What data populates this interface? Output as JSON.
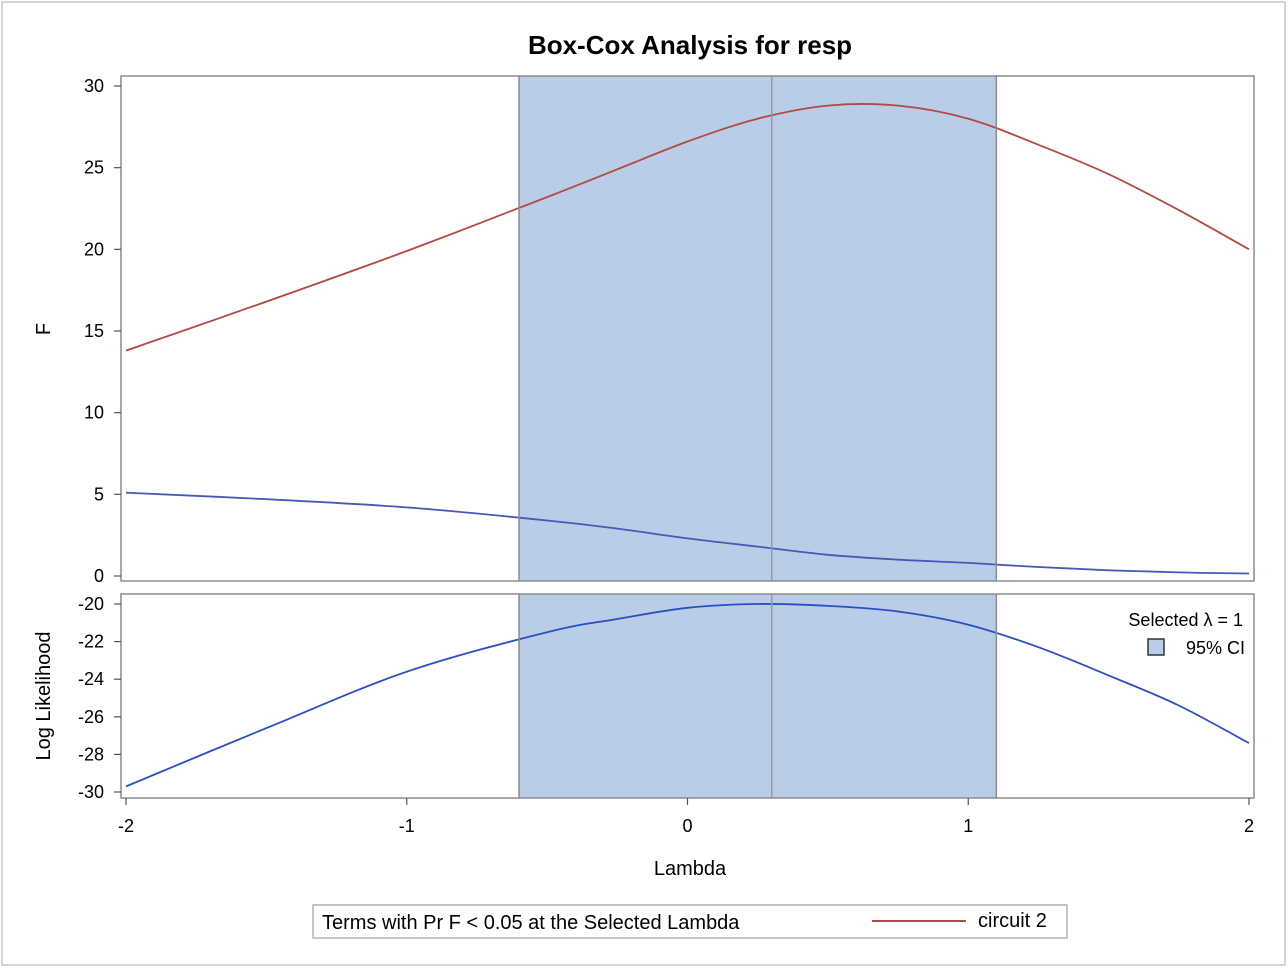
{
  "chart_data": {
    "type": "line",
    "title": "Box-Cox Analysis for resp",
    "xlabel": "Lambda",
    "xlim": [
      -2,
      2
    ],
    "x_ticks": [
      "-2",
      "-1",
      "0",
      "1",
      "2"
    ],
    "selected_lambda_note": "Selected λ = 1",
    "ci_label": "95% CI",
    "ci_color": "#b9cde8",
    "ci_interval": [
      -0.6,
      1.1
    ],
    "selected_marker": 0.3,
    "panels": [
      {
        "ylabel": "F",
        "ylim": [
          0,
          30
        ],
        "y_ticks": [
          "0",
          "5",
          "10",
          "15",
          "20",
          "25",
          "30"
        ],
        "series": [
          {
            "name": "circuit 2",
            "color": "#b14a42",
            "x": [
              -2,
              -1.5,
              -1,
              -0.5,
              -0.25,
              0,
              0.25,
              0.5,
              0.75,
              1,
              1.25,
              1.5,
              1.75,
              2
            ],
            "y": [
              13.8,
              16.8,
              19.9,
              23.2,
              24.9,
              26.6,
              28.0,
              28.8,
              28.8,
              28.0,
              26.4,
              24.6,
              22.4,
              20.0
            ]
          },
          {
            "color": "#4758b5",
            "x": [
              -2,
              -1.5,
              -1,
              -0.5,
              -0.25,
              0,
              0.25,
              0.5,
              0.75,
              1,
              1.25,
              1.5,
              1.75,
              2
            ],
            "y": [
              5.1,
              4.7,
              4.2,
              3.4,
              2.9,
              2.3,
              1.8,
              1.3,
              1.0,
              0.8,
              0.55,
              0.35,
              0.22,
              0.15
            ]
          }
        ]
      },
      {
        "ylabel": "Log Likelihood",
        "ylim": [
          -30,
          -20
        ],
        "y_ticks": [
          "-20",
          "-22",
          "-24",
          "-26",
          "-28",
          "-30"
        ],
        "series": [
          {
            "color": "#2a4fbf",
            "x": [
              -2,
              -1.5,
              -1,
              -0.5,
              -0.25,
              0,
              0.25,
              0.5,
              0.75,
              1,
              1.25,
              1.5,
              1.75,
              2
            ],
            "y": [
              -29.7,
              -26.6,
              -23.6,
              -21.5,
              -20.8,
              -20.2,
              -20.0,
              -20.1,
              -20.4,
              -21.1,
              -22.3,
              -23.8,
              -25.4,
              -27.4
            ]
          }
        ]
      }
    ],
    "legend": {
      "title": "Terms with Pr F < 0.05 at the Selected Lambda",
      "entries": [
        {
          "label": "circuit 2",
          "color": "#b14a42"
        }
      ]
    }
  }
}
